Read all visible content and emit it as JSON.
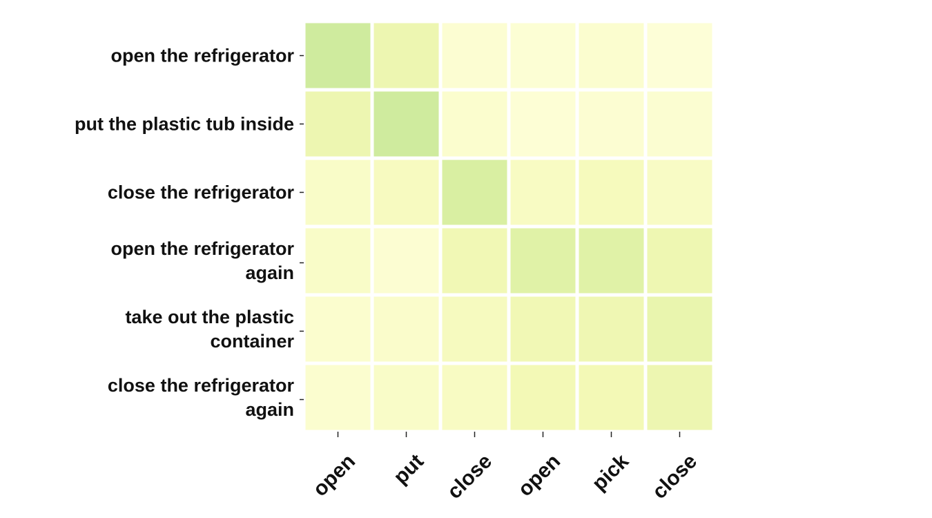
{
  "chart_data": {
    "type": "heatmap",
    "title": "",
    "xlabel": "",
    "ylabel": "",
    "row_labels": [
      "open the refrigerator",
      "put the plastic tub inside",
      "close the refrigerator",
      "open the refrigerator again",
      "take out the plastic container",
      "close the refrigerator again"
    ],
    "column_labels": [
      "open",
      "put",
      "close",
      "open",
      "pick",
      "close"
    ],
    "values": [
      [
        0.6,
        0.32,
        0.07,
        0.06,
        0.09,
        0.04
      ],
      [
        0.32,
        0.6,
        0.1,
        0.05,
        0.07,
        0.08
      ],
      [
        0.14,
        0.19,
        0.52,
        0.17,
        0.21,
        0.16
      ],
      [
        0.14,
        0.07,
        0.28,
        0.45,
        0.45,
        0.31
      ],
      [
        0.1,
        0.12,
        0.2,
        0.28,
        0.3,
        0.36
      ],
      [
        0.09,
        0.14,
        0.17,
        0.26,
        0.26,
        0.32
      ]
    ],
    "value_range": [
      0,
      1
    ],
    "colorscale": [
      "#ffffdd",
      "#f4f9b7",
      "#dbf0a3",
      "#bce397",
      "#a6d98a"
    ],
    "grid": false,
    "legend": "none"
  }
}
